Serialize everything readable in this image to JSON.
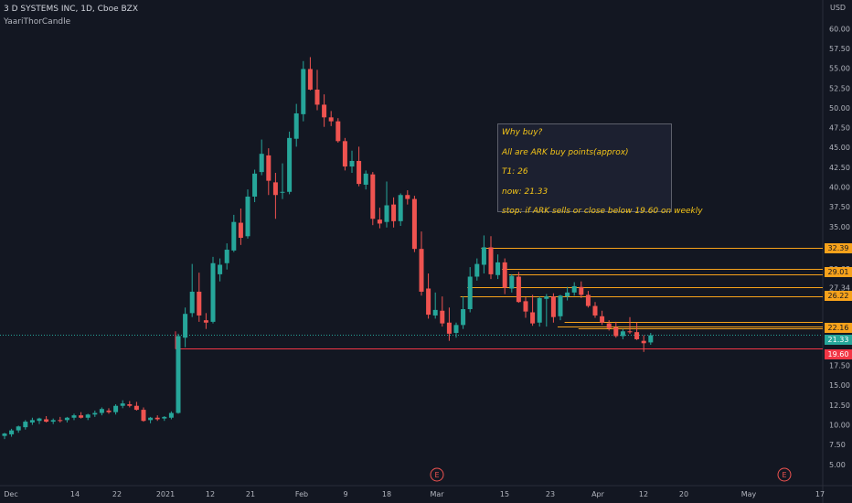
{
  "header": {
    "symbol_line": "3 D SYSTEMS INC, 1D, Cboe BZX",
    "indicator": "YaariThorCandle"
  },
  "currency": "USD",
  "annotation": {
    "lines": [
      "Why buy?",
      "All are ARK buy points(approx)",
      "T1: 26",
      "now: 21.33",
      "stop: if ARK sells or close below 19.60 on weekly"
    ]
  },
  "price_tags": [
    {
      "label": "32.39",
      "kind": "level"
    },
    {
      "label": "29.01",
      "kind": "level"
    },
    {
      "label": "26.22",
      "kind": "level"
    },
    {
      "label": "22.16",
      "kind": "level"
    },
    {
      "label": "21.33",
      "kind": "current"
    },
    {
      "label": "19.60",
      "kind": "stop"
    }
  ],
  "earnings_marker": "E",
  "colors": {
    "background": "#131722",
    "up": "#26a69a",
    "down": "#ef5350",
    "level_line": "#f7a21b",
    "stop_line": "#f23645",
    "annotation_text": "#f5c518",
    "axis_text": "#b2b5be"
  },
  "chart_data": {
    "type": "candlestick",
    "title": "3 D SYSTEMS INC, 1D, Cboe BZX",
    "ylabel": "USD",
    "ylim": [
      3.6,
      61.3
    ],
    "y_ticks": [
      "60.00",
      "57.50",
      "55.00",
      "52.50",
      "50.00",
      "47.50",
      "45.00",
      "42.50",
      "40.00",
      "37.50",
      "35.00",
      "32.50",
      "29.68",
      "27.34",
      "22.45",
      "17.50",
      "15.00",
      "12.50",
      "10.00",
      "7.50",
      "5.00"
    ],
    "x_ticks": [
      "Dec",
      "14",
      "22",
      "2021",
      "12",
      "21",
      "Feb",
      "9",
      "18",
      "Mar",
      "15",
      "23",
      "Apr",
      "12",
      "20",
      "May",
      "17"
    ],
    "horizontal_levels": [
      {
        "price": 32.39,
        "kind": "target",
        "from_index": 69
      },
      {
        "price": 29.68,
        "kind": "target",
        "from_index": 72
      },
      {
        "price": 29.01,
        "kind": "target",
        "from_index": 73
      },
      {
        "price": 27.34,
        "kind": "target",
        "from_index": 67
      },
      {
        "price": 26.22,
        "kind": "target",
        "from_index": 66
      },
      {
        "price": 22.95,
        "kind": "target",
        "from_index": 81
      },
      {
        "price": 22.45,
        "kind": "target",
        "from_index": 80
      },
      {
        "price": 22.16,
        "kind": "target",
        "from_index": 83
      },
      {
        "price": 21.33,
        "kind": "current",
        "from_index": 0
      },
      {
        "price": 19.6,
        "kind": "stop",
        "from_index": 25
      }
    ],
    "earnings_dates_index": [
      58,
      104
    ],
    "candles": [
      [
        8.6,
        9.0,
        8.2,
        8.9
      ],
      [
        8.8,
        9.5,
        8.5,
        9.3
      ],
      [
        9.3,
        9.9,
        9.0,
        9.8
      ],
      [
        9.7,
        10.6,
        9.4,
        10.4
      ],
      [
        10.3,
        10.9,
        10.0,
        10.6
      ],
      [
        10.5,
        10.9,
        10.1,
        10.8
      ],
      [
        10.7,
        11.1,
        10.3,
        10.4
      ],
      [
        10.4,
        10.8,
        10.1,
        10.6
      ],
      [
        10.6,
        11.0,
        10.3,
        10.5
      ],
      [
        10.6,
        11.0,
        10.3,
        10.9
      ],
      [
        10.9,
        11.4,
        10.6,
        11.2
      ],
      [
        11.2,
        11.6,
        10.8,
        10.9
      ],
      [
        10.9,
        11.4,
        10.6,
        11.3
      ],
      [
        11.3,
        11.8,
        11.0,
        11.5
      ],
      [
        11.5,
        12.2,
        11.2,
        12.0
      ],
      [
        11.8,
        12.1,
        11.4,
        11.6
      ],
      [
        11.6,
        12.6,
        11.3,
        12.4
      ],
      [
        12.4,
        13.1,
        12.1,
        12.7
      ],
      [
        12.6,
        13.0,
        12.2,
        12.4
      ],
      [
        12.4,
        12.9,
        11.8,
        11.9
      ],
      [
        11.9,
        12.2,
        10.4,
        10.5
      ],
      [
        10.6,
        11.0,
        10.2,
        10.9
      ],
      [
        10.9,
        11.2,
        10.5,
        10.7
      ],
      [
        10.8,
        11.1,
        10.5,
        11.0
      ],
      [
        10.9,
        11.7,
        10.7,
        11.5
      ],
      [
        11.5,
        21.5,
        11.4,
        21.2
      ],
      [
        21.0,
        24.8,
        19.8,
        24.0
      ],
      [
        24.1,
        30.3,
        23.6,
        26.8
      ],
      [
        26.8,
        29.2,
        23.0,
        23.8
      ],
      [
        23.2,
        24.1,
        22.1,
        22.9
      ],
      [
        23.0,
        31.2,
        22.8,
        30.4
      ],
      [
        29.0,
        31.0,
        28.1,
        30.2
      ],
      [
        30.4,
        32.9,
        29.6,
        32.1
      ],
      [
        32.0,
        36.5,
        31.8,
        35.6
      ],
      [
        35.5,
        37.3,
        32.7,
        33.6
      ],
      [
        33.8,
        39.7,
        33.5,
        38.8
      ],
      [
        38.8,
        42.2,
        38.1,
        41.7
      ],
      [
        41.9,
        46.0,
        41.5,
        44.2
      ],
      [
        44.0,
        44.9,
        39.0,
        40.8
      ],
      [
        40.6,
        41.8,
        36.0,
        39.0
      ],
      [
        39.3,
        43.0,
        38.5,
        39.4
      ],
      [
        39.4,
        47.0,
        39.1,
        46.2
      ],
      [
        46.1,
        50.5,
        45.1,
        49.3
      ],
      [
        49.2,
        55.9,
        48.3,
        54.9
      ],
      [
        54.9,
        56.4,
        52.2,
        52.3
      ],
      [
        52.3,
        54.8,
        49.7,
        50.4
      ],
      [
        50.4,
        51.7,
        47.6,
        48.8
      ],
      [
        48.8,
        49.6,
        47.7,
        48.3
      ],
      [
        48.3,
        48.7,
        45.6,
        45.8
      ],
      [
        45.8,
        46.2,
        42.1,
        42.6
      ],
      [
        42.6,
        44.6,
        41.8,
        43.3
      ],
      [
        43.3,
        45.1,
        40.1,
        40.4
      ],
      [
        40.3,
        42.1,
        39.7,
        41.7
      ],
      [
        41.6,
        41.9,
        35.2,
        36.0
      ],
      [
        35.9,
        37.4,
        34.8,
        35.4
      ],
      [
        35.6,
        40.7,
        34.9,
        37.7
      ],
      [
        37.8,
        38.7,
        34.9,
        35.7
      ],
      [
        35.7,
        39.2,
        35.1,
        39.0
      ],
      [
        39.0,
        39.6,
        37.8,
        38.5
      ],
      [
        38.5,
        38.9,
        31.8,
        32.2
      ],
      [
        32.2,
        34.4,
        26.3,
        26.8
      ],
      [
        27.2,
        29.1,
        23.4,
        23.9
      ],
      [
        23.8,
        26.7,
        23.4,
        24.5
      ],
      [
        24.4,
        26.2,
        22.4,
        22.8
      ],
      [
        22.9,
        24.8,
        20.6,
        21.5
      ],
      [
        21.6,
        22.9,
        21.0,
        22.6
      ],
      [
        22.6,
        26.2,
        22.1,
        24.6
      ],
      [
        24.6,
        29.9,
        24.2,
        28.7
      ],
      [
        28.7,
        31.0,
        28.2,
        30.3
      ],
      [
        30.2,
        33.9,
        29.1,
        32.4
      ],
      [
        32.4,
        33.8,
        28.4,
        29.0
      ],
      [
        28.9,
        31.5,
        28.4,
        30.5
      ],
      [
        30.5,
        31.0,
        26.5,
        27.3
      ],
      [
        27.2,
        29.0,
        26.7,
        28.8
      ],
      [
        28.7,
        29.3,
        25.4,
        25.5
      ],
      [
        25.6,
        26.1,
        23.5,
        24.3
      ],
      [
        24.2,
        26.4,
        22.5,
        22.8
      ],
      [
        22.9,
        26.2,
        22.4,
        26.0
      ],
      [
        25.9,
        26.5,
        22.4,
        26.2
      ],
      [
        26.2,
        26.6,
        22.9,
        23.6
      ],
      [
        23.7,
        26.4,
        23.2,
        26.3
      ],
      [
        26.2,
        27.4,
        25.7,
        26.7
      ],
      [
        26.7,
        28.0,
        26.3,
        27.5
      ],
      [
        27.4,
        28.1,
        26.0,
        26.4
      ],
      [
        26.4,
        26.9,
        24.8,
        25.0
      ],
      [
        25.0,
        25.5,
        23.5,
        23.8
      ],
      [
        23.7,
        24.4,
        22.6,
        22.9
      ],
      [
        22.8,
        23.2,
        21.9,
        22.2
      ],
      [
        22.3,
        23.0,
        21.0,
        21.2
      ],
      [
        21.2,
        22.1,
        20.8,
        21.8
      ],
      [
        21.8,
        23.6,
        21.5,
        21.7
      ],
      [
        21.7,
        22.9,
        20.7,
        20.8
      ],
      [
        20.6,
        21.3,
        19.2,
        20.3
      ],
      [
        20.4,
        21.6,
        20.1,
        21.3
      ]
    ]
  }
}
